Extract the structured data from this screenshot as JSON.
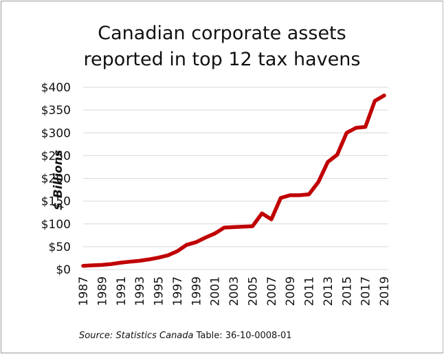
{
  "chart_data": {
    "type": "line",
    "title_lines": [
      "Canadian corporate assets",
      "reported in top 12 tax havens"
    ],
    "ylabel": "$ Billions",
    "xlabel": "",
    "x": [
      1987,
      1988,
      1989,
      1990,
      1991,
      1992,
      1993,
      1994,
      1995,
      1996,
      1997,
      1998,
      1999,
      2000,
      2001,
      2002,
      2003,
      2004,
      2005,
      2006,
      2007,
      2008,
      2009,
      2010,
      2011,
      2012,
      2013,
      2014,
      2015,
      2016,
      2017,
      2018,
      2019
    ],
    "series": [
      {
        "color": "#c00000",
        "values": [
          8,
          9,
          10,
          12,
          15,
          17,
          19,
          22,
          26,
          31,
          40,
          54,
          60,
          70,
          79,
          92,
          93,
          94,
          95,
          123,
          110,
          157,
          163,
          163,
          165,
          192,
          236,
          252,
          300,
          311,
          313,
          370,
          382
        ]
      }
    ],
    "ylim": [
      0,
      400
    ],
    "xlim": [
      1987,
      2019
    ],
    "y_ticks": [
      0,
      50,
      100,
      150,
      200,
      250,
      300,
      350,
      400
    ],
    "y_tick_labels": [
      "$0",
      "$50",
      "$100",
      "$150",
      "$200",
      "$250",
      "$300",
      "$350",
      "$400"
    ],
    "x_ticks": [
      1987,
      1989,
      1991,
      1993,
      1995,
      1997,
      1999,
      2001,
      2003,
      2005,
      2007,
      2009,
      2011,
      2013,
      2015,
      2017,
      2019
    ],
    "x_tick_labels": [
      "1987",
      "1989",
      "1991",
      "1993",
      "1995",
      "1997",
      "1999",
      "2001",
      "2003",
      "2005",
      "2007",
      "2009",
      "2011",
      "2013",
      "2015",
      "2017",
      "2019"
    ],
    "grid": "horizontal",
    "legend": "none"
  },
  "source": {
    "label": "Source:",
    "org": "Statistics Canada",
    "table": "Table: 36-10-0008-01"
  }
}
